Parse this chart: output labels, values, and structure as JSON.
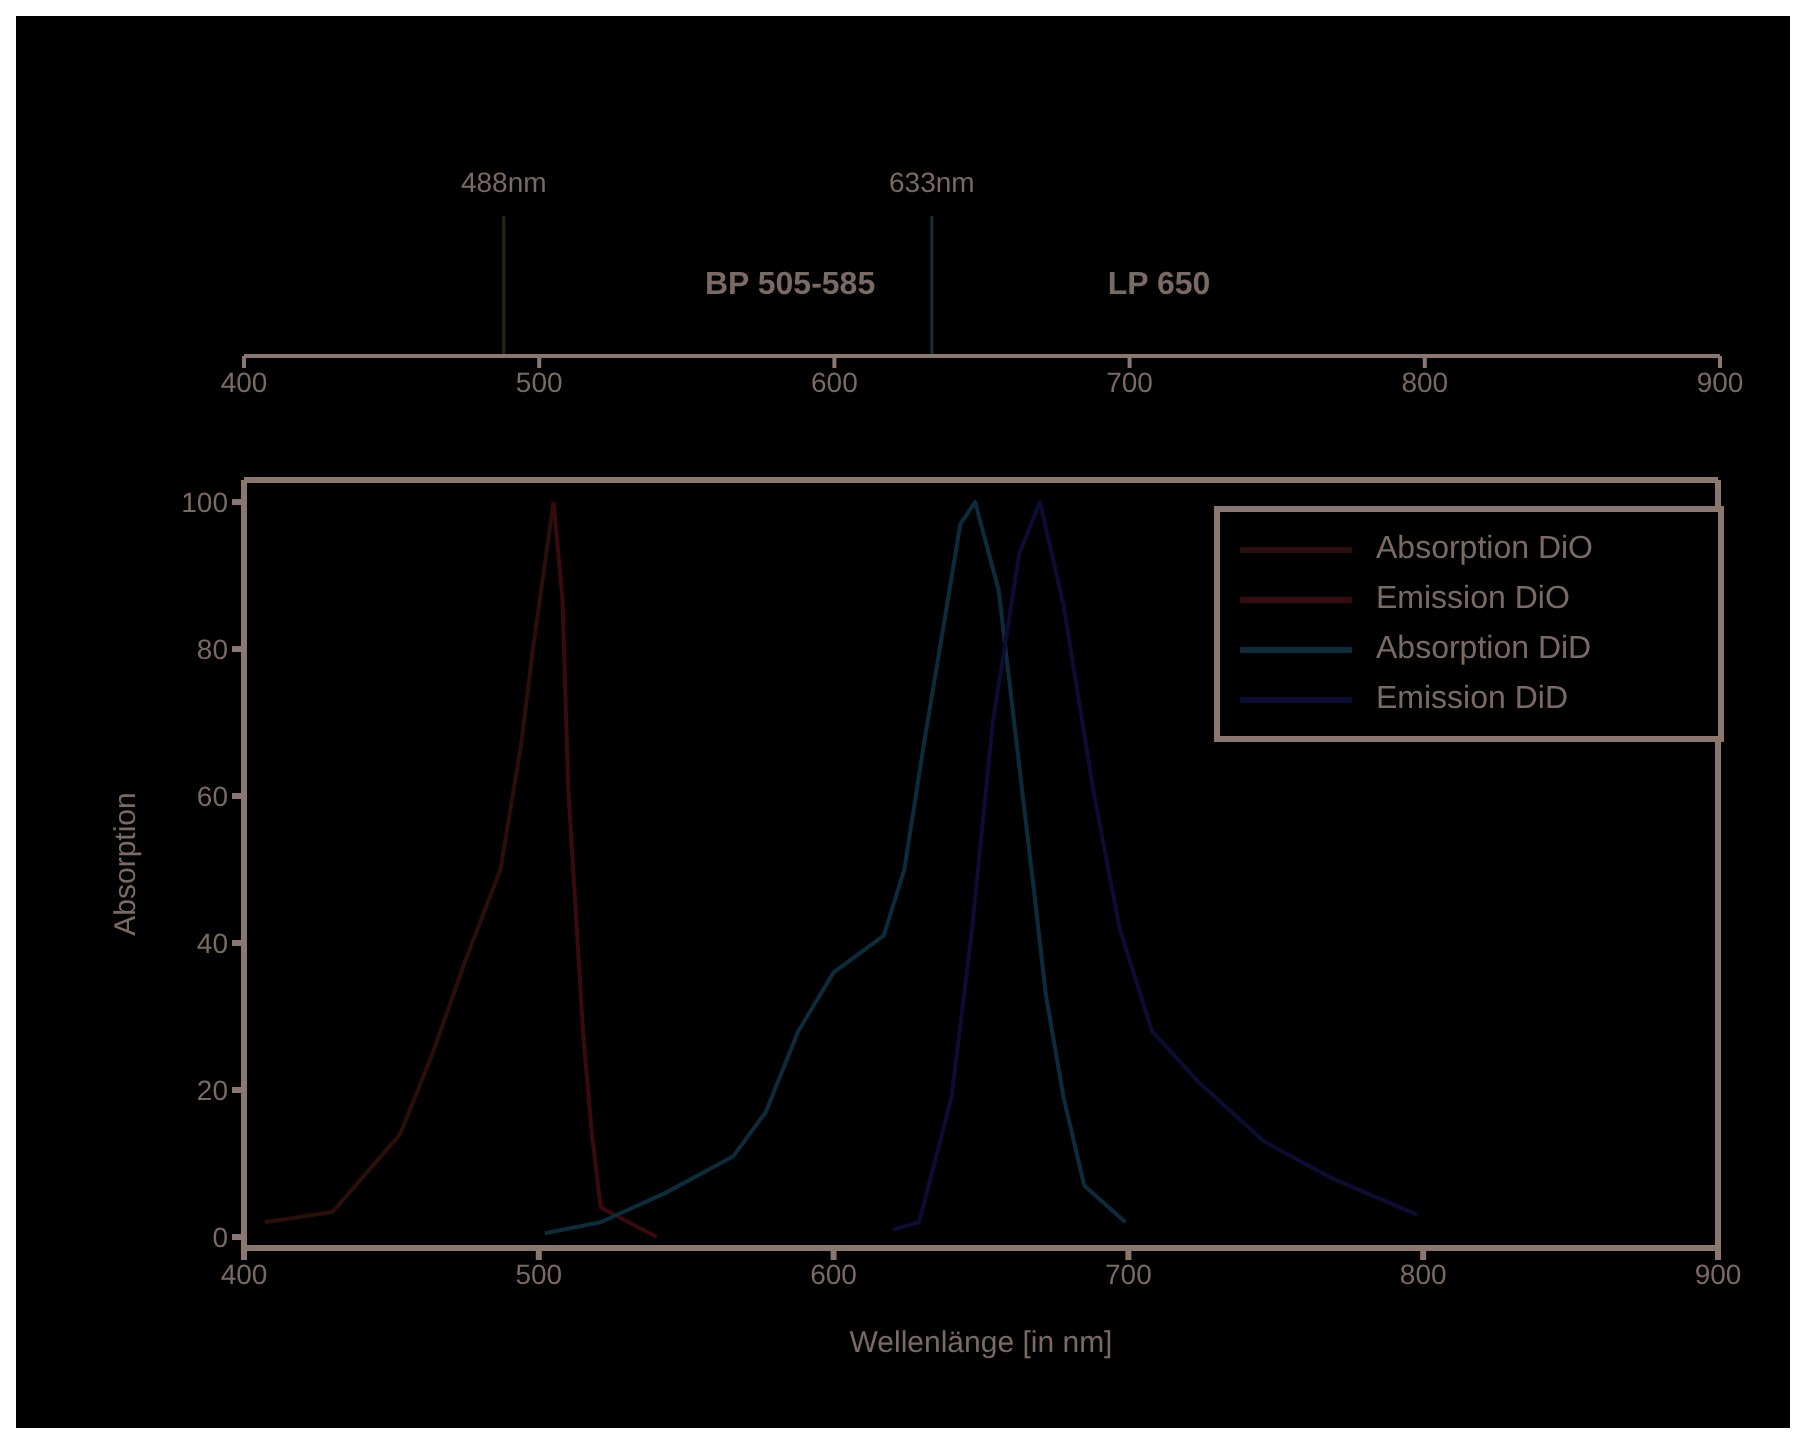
{
  "chart_data": {
    "type": "line",
    "xlabel": "Wellenlänge [in nm]",
    "ylabel": "Absorption",
    "xlim": [
      400,
      900
    ],
    "xticks": [
      400,
      500,
      600,
      700,
      800,
      900
    ],
    "x2lim": [
      400,
      900
    ],
    "x2ticks": [
      400,
      500,
      600,
      700,
      800,
      900
    ],
    "ylim": [
      -1.5,
      103
    ],
    "yticks": [
      0,
      20,
      40,
      60,
      80,
      100
    ],
    "legend": "top right",
    "series": [
      {
        "name": "Absorption DiO",
        "color": "#2c0e0a",
        "x": [
          407,
          430,
          453,
          464,
          475,
          487,
          494,
          498,
          505
        ],
        "values": [
          2,
          3.4,
          14,
          25,
          37.5,
          50,
          67,
          80,
          100
        ]
      },
      {
        "name": "Emission DiO",
        "color": "#3a0a0e",
        "x": [
          505,
          508,
          510,
          515,
          518,
          521,
          540
        ],
        "values": [
          100,
          87,
          61,
          28,
          14,
          4,
          0
        ]
      },
      {
        "name": "Absorption DiD",
        "color": "#0c2c3c",
        "x": [
          502,
          521,
          543,
          566,
          577,
          588,
          600,
          617,
          624,
          631,
          636,
          643,
          648,
          656,
          663,
          668,
          672,
          678,
          685,
          699
        ],
        "values": [
          0.5,
          2,
          6,
          11,
          17,
          28,
          36,
          41,
          50,
          68,
          80,
          97,
          100,
          88,
          64,
          47,
          33,
          19,
          7,
          2
        ]
      },
      {
        "name": "Emission DiD",
        "color": "#0c0c34",
        "x": [
          620,
          629,
          640,
          647,
          654,
          663,
          670,
          678,
          688,
          697,
          708,
          724,
          746,
          769,
          798
        ],
        "values": [
          1,
          2,
          19,
          42,
          70,
          93,
          100,
          86,
          61,
          42,
          28,
          21,
          13,
          8,
          3
        ]
      }
    ],
    "ref_lines": [
      {
        "axis": "x",
        "value": 488,
        "label": "488nm",
        "color": "#2a2616"
      },
      {
        "axis": "x",
        "value": 633,
        "label": "633nm",
        "color": "#163038"
      }
    ],
    "annotations": [
      "BP 505-585",
      "LP 650"
    ]
  }
}
